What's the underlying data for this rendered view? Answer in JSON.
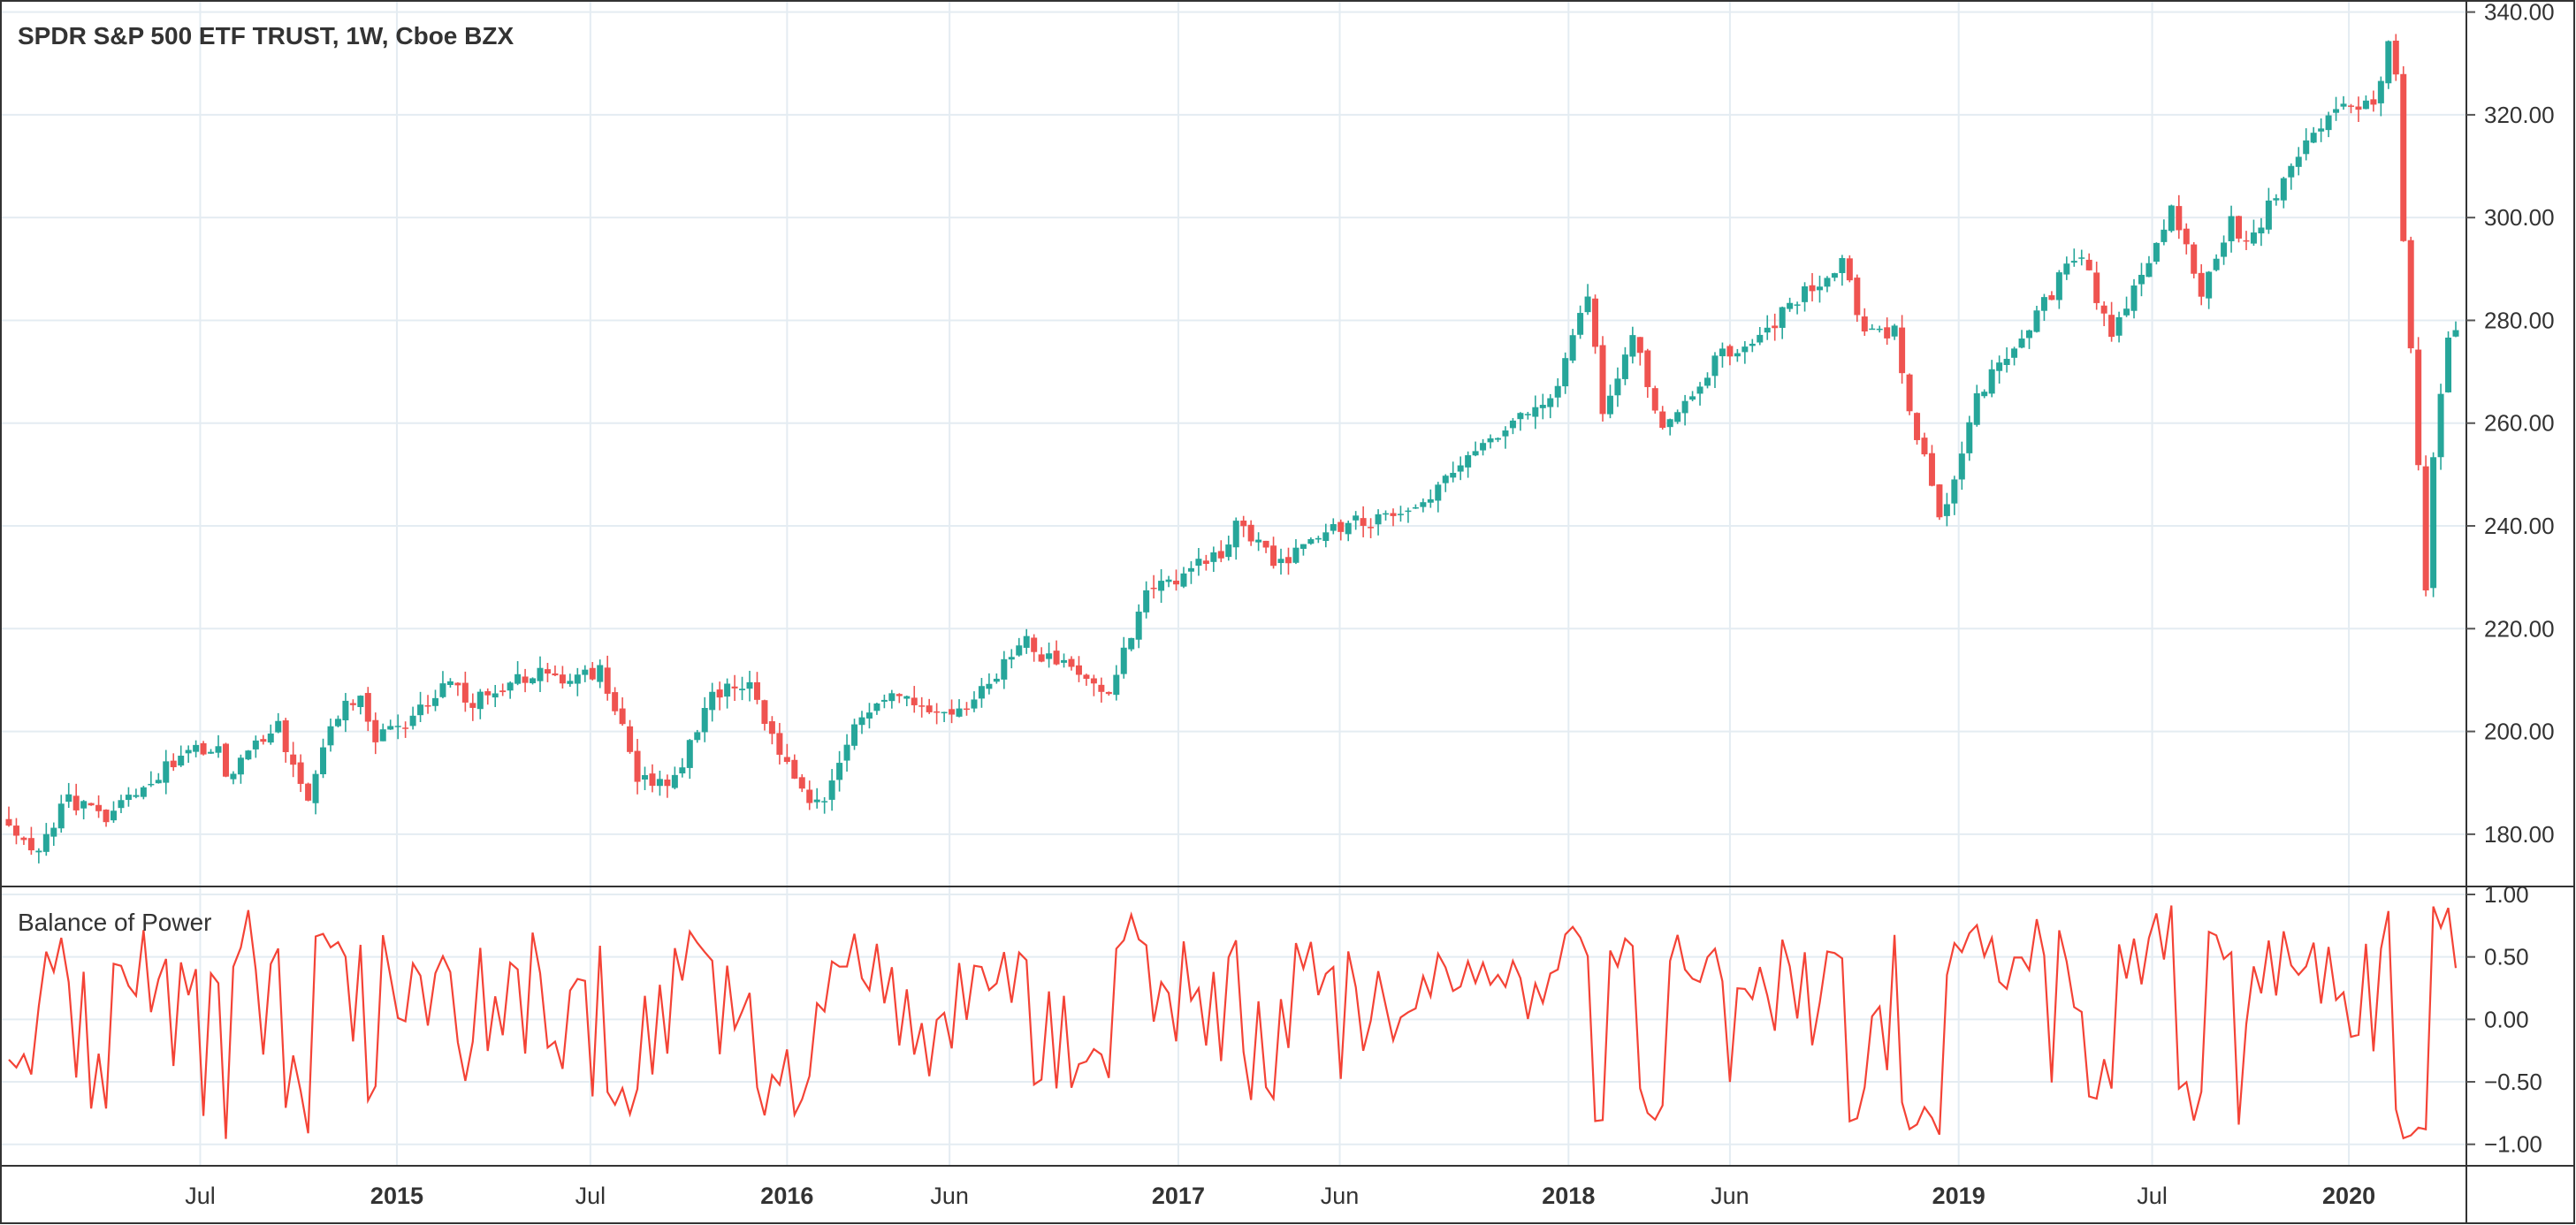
{
  "chart_data": [
    {
      "type": "candlestick",
      "title": "SPDR S&P 500 ETF TRUST, 1W, Cboe BZX",
      "interval": "1W",
      "ylim": [
        170,
        342
      ],
      "y_ticks": [
        180,
        200,
        220,
        240,
        260,
        280,
        300,
        320,
        340
      ],
      "y_tick_labels": [
        "180.00",
        "200.00",
        "220.00",
        "240.00",
        "260.00",
        "280.00",
        "300.00",
        "320.00",
        "340.00"
      ],
      "x_ticks": [
        {
          "label": "Jul",
          "date": "2014-07-01",
          "major": false
        },
        {
          "label": "2015",
          "date": "2015-01-01",
          "major": true
        },
        {
          "label": "Jul",
          "date": "2015-07-01",
          "major": false
        },
        {
          "label": "2016",
          "date": "2016-01-01",
          "major": true
        },
        {
          "label": "Jun",
          "date": "2016-06-01",
          "major": false
        },
        {
          "label": "2017",
          "date": "2017-01-01",
          "major": true
        },
        {
          "label": "Jun",
          "date": "2017-06-01",
          "major": false
        },
        {
          "label": "2018",
          "date": "2018-01-01",
          "major": true
        },
        {
          "label": "Jun",
          "date": "2018-06-01",
          "major": false
        },
        {
          "label": "2019",
          "date": "2019-01-01",
          "major": true
        },
        {
          "label": "Jul",
          "date": "2019-07-01",
          "major": false
        },
        {
          "label": "2020",
          "date": "2020-01-01",
          "major": true
        }
      ],
      "x_start": "2014-01-03",
      "x_end": "2020-04-10",
      "up_color": "#26a69a",
      "down_color": "#ef5350",
      "price_anchors": [
        [
          "2014-01-03",
          183
        ],
        [
          "2014-02-03",
          176
        ],
        [
          "2014-03-07",
          187
        ],
        [
          "2014-04-11",
          183
        ],
        [
          "2014-05-02",
          188
        ],
        [
          "2014-06-20",
          195
        ],
        [
          "2014-07-25",
          197
        ],
        [
          "2014-08-01",
          192
        ],
        [
          "2014-09-19",
          201
        ],
        [
          "2014-10-15",
          187
        ],
        [
          "2014-11-14",
          204
        ],
        [
          "2014-12-05",
          207
        ],
        [
          "2014-12-16",
          199
        ],
        [
          "2015-01-16",
          201
        ],
        [
          "2015-02-27",
          211
        ],
        [
          "2015-03-13",
          205
        ],
        [
          "2015-05-22",
          212
        ],
        [
          "2015-06-26",
          210
        ],
        [
          "2015-07-17",
          212
        ],
        [
          "2015-08-24",
          190
        ],
        [
          "2015-09-25",
          191
        ],
        [
          "2015-10-30",
          207
        ],
        [
          "2015-12-04",
          209
        ],
        [
          "2015-12-18",
          201
        ],
        [
          "2016-01-22",
          188
        ],
        [
          "2016-02-12",
          186
        ],
        [
          "2016-03-18",
          204
        ],
        [
          "2016-04-22",
          208
        ],
        [
          "2016-05-20",
          205
        ],
        [
          "2016-06-24",
          203
        ],
        [
          "2016-08-12",
          218
        ],
        [
          "2016-09-09",
          214
        ],
        [
          "2016-11-04",
          208
        ],
        [
          "2016-12-09",
          226
        ],
        [
          "2017-02-24",
          236
        ],
        [
          "2017-03-01",
          240
        ],
        [
          "2017-04-14",
          232
        ],
        [
          "2017-05-19",
          238
        ],
        [
          "2017-06-30",
          241
        ],
        [
          "2017-08-11",
          243
        ],
        [
          "2017-09-29",
          251
        ],
        [
          "2017-11-03",
          258
        ],
        [
          "2017-12-29",
          267
        ],
        [
          "2018-01-26",
          286
        ],
        [
          "2018-02-09",
          262
        ],
        [
          "2018-03-09",
          278
        ],
        [
          "2018-04-06",
          259
        ],
        [
          "2018-05-25",
          272
        ],
        [
          "2018-07-27",
          281
        ],
        [
          "2018-09-21",
          292
        ],
        [
          "2018-10-12",
          277
        ],
        [
          "2018-11-09",
          278
        ],
        [
          "2018-11-23",
          263
        ],
        [
          "2018-12-24",
          240
        ],
        [
          "2019-01-25",
          265
        ],
        [
          "2019-03-29",
          283
        ],
        [
          "2019-04-30",
          294
        ],
        [
          "2019-05-31",
          276
        ],
        [
          "2019-07-26",
          302
        ],
        [
          "2019-08-23",
          285
        ],
        [
          "2019-09-20",
          299
        ],
        [
          "2019-10-04",
          294
        ],
        [
          "2019-11-29",
          315
        ],
        [
          "2019-12-31",
          322
        ],
        [
          "2020-01-31",
          322
        ],
        [
          "2020-02-19",
          338
        ],
        [
          "2020-02-28",
          297
        ],
        [
          "2020-03-20",
          229
        ],
        [
          "2020-03-27",
          253
        ],
        [
          "2020-04-10",
          278
        ]
      ]
    },
    {
      "type": "line",
      "title": "Balance of Power",
      "ylim": [
        -1.08,
        1.0
      ],
      "y_ticks": [
        1.0,
        0.5,
        0.0,
        -0.5,
        -1.0
      ],
      "y_tick_labels": [
        "1.00",
        "0.50",
        "0.00",
        "−0.50",
        "−1.00"
      ],
      "series": [
        {
          "color": "#f44336",
          "range": [
            -1.0,
            1.0
          ]
        }
      ]
    }
  ]
}
